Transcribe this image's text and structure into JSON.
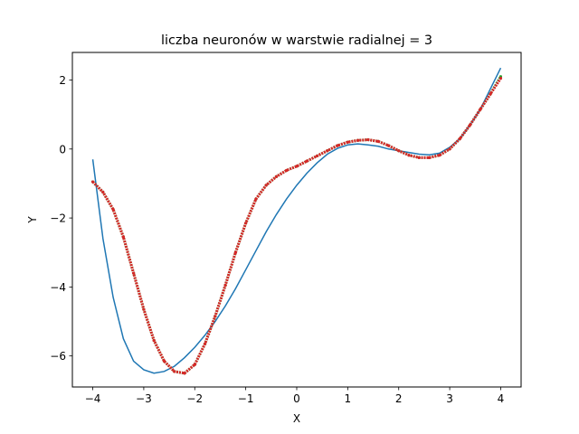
{
  "chart_data": {
    "type": "line",
    "title": "liczba neuronów w warstwie radialnej = 3",
    "xlabel": "X",
    "ylabel": "Y",
    "xlim": [
      -4.4,
      4.4
    ],
    "ylim": [
      -6.9,
      2.8
    ],
    "xticks": [
      -4,
      -3,
      -2,
      -1,
      0,
      1,
      2,
      3,
      4
    ],
    "xtick_labels": [
      "−4",
      "−3",
      "−2",
      "−1",
      "0",
      "1",
      "2",
      "3",
      "4"
    ],
    "yticks": [
      -6,
      -4,
      -2,
      0,
      2
    ],
    "ytick_labels": [
      "−6",
      "−4",
      "−2",
      "0",
      "2"
    ],
    "grid": false,
    "series": [
      {
        "style": "line",
        "color": "#1f77b4",
        "x": [
          -4.0,
          -3.8,
          -3.6,
          -3.4,
          -3.2,
          -3.0,
          -2.8,
          -2.6,
          -2.4,
          -2.2,
          -2.0,
          -1.8,
          -1.6,
          -1.4,
          -1.2,
          -1.0,
          -0.8,
          -0.6,
          -0.4,
          -0.2,
          0.0,
          0.2,
          0.4,
          0.6,
          0.8,
          1.0,
          1.2,
          1.4,
          1.6,
          1.8,
          2.0,
          2.2,
          2.4,
          2.6,
          2.8,
          3.0,
          3.2,
          3.4,
          3.6,
          3.8,
          4.0
        ],
        "y": [
          -0.3,
          -2.6,
          -4.3,
          -5.5,
          -6.15,
          -6.4,
          -6.5,
          -6.45,
          -6.3,
          -6.05,
          -5.75,
          -5.4,
          -5.0,
          -4.55,
          -4.05,
          -3.5,
          -2.95,
          -2.4,
          -1.9,
          -1.45,
          -1.05,
          -0.7,
          -0.4,
          -0.15,
          0.02,
          0.12,
          0.15,
          0.12,
          0.08,
          0.0,
          -0.05,
          -0.1,
          -0.15,
          -0.17,
          -0.12,
          0.05,
          0.3,
          0.7,
          1.15,
          1.75,
          2.35
        ]
      },
      {
        "style": "dots",
        "color": "#2ca02c",
        "x": [
          -4.0,
          -3.8,
          -3.6,
          -3.4,
          -3.2,
          -3.0,
          -2.8,
          -2.6,
          -2.4,
          -2.2,
          -2.0,
          -1.8,
          -1.6,
          -1.4,
          -1.2,
          -1.0,
          -0.8,
          -0.6,
          -0.4,
          -0.2,
          0.0,
          0.2,
          0.4,
          0.6,
          0.8,
          1.0,
          1.2,
          1.4,
          1.6,
          1.8,
          2.0,
          2.2,
          2.4,
          2.6,
          2.8,
          3.0,
          3.2,
          3.4,
          3.6,
          3.8,
          4.0
        ],
        "y": [
          -0.95,
          -1.25,
          -1.75,
          -2.55,
          -3.6,
          -4.65,
          -5.55,
          -6.15,
          -6.45,
          -6.5,
          -6.25,
          -5.65,
          -4.85,
          -3.95,
          -3.0,
          -2.15,
          -1.45,
          -1.05,
          -0.8,
          -0.62,
          -0.5,
          -0.35,
          -0.2,
          -0.05,
          0.1,
          0.2,
          0.25,
          0.27,
          0.22,
          0.1,
          -0.05,
          -0.18,
          -0.25,
          -0.25,
          -0.18,
          0.0,
          0.3,
          0.7,
          1.15,
          1.6,
          2.1
        ]
      },
      {
        "style": "dots",
        "color": "#d62728",
        "x": [
          -4.0,
          -3.8,
          -3.6,
          -3.4,
          -3.2,
          -3.0,
          -2.8,
          -2.6,
          -2.4,
          -2.2,
          -2.0,
          -1.8,
          -1.6,
          -1.4,
          -1.2,
          -1.0,
          -0.8,
          -0.6,
          -0.4,
          -0.2,
          0.0,
          0.2,
          0.4,
          0.6,
          0.8,
          1.0,
          1.2,
          1.4,
          1.6,
          1.8,
          2.0,
          2.2,
          2.4,
          2.6,
          2.8,
          3.0,
          3.2,
          3.4,
          3.6,
          3.8,
          4.0
        ],
        "y": [
          -0.95,
          -1.25,
          -1.75,
          -2.55,
          -3.6,
          -4.65,
          -5.55,
          -6.15,
          -6.45,
          -6.5,
          -6.25,
          -5.65,
          -4.85,
          -3.95,
          -3.0,
          -2.15,
          -1.45,
          -1.05,
          -0.8,
          -0.62,
          -0.5,
          -0.35,
          -0.2,
          -0.05,
          0.1,
          0.2,
          0.25,
          0.27,
          0.22,
          0.1,
          -0.05,
          -0.18,
          -0.25,
          -0.25,
          -0.18,
          0.0,
          0.3,
          0.7,
          1.15,
          1.6,
          2.05
        ]
      }
    ]
  }
}
